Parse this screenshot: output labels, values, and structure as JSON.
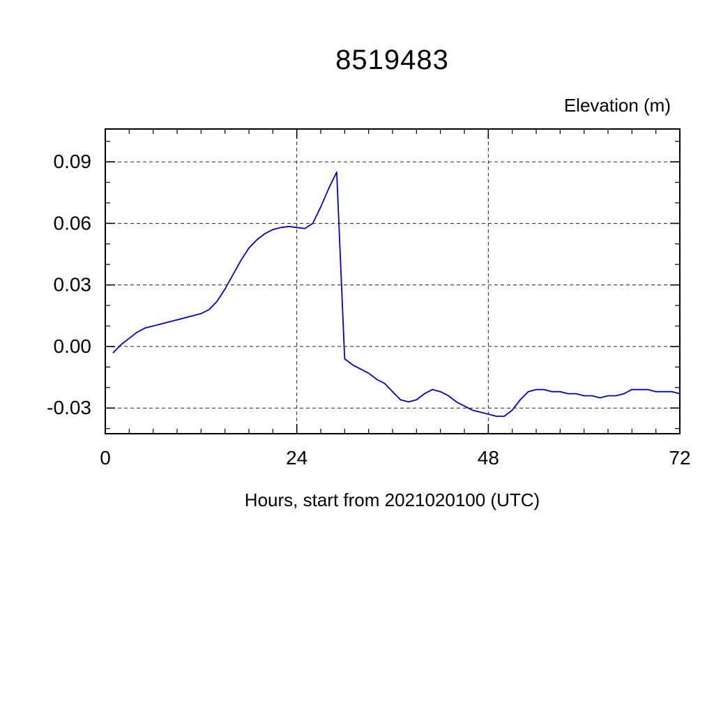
{
  "chart_data": {
    "type": "line",
    "title": "8519483",
    "ylabel": "Elevation (m)",
    "xlabel": "Hours, start from 2021020100 (UTC)",
    "line_color": "#0000cd",
    "grid": true,
    "legend": "none",
    "xlim": [
      0,
      72
    ],
    "ylim": [
      -0.0425,
      0.106
    ],
    "x_minor": 3,
    "y_minor": 0.01,
    "xticks": {
      "values": [
        0,
        24,
        48,
        72
      ],
      "labels": [
        "0",
        "24",
        "48",
        "72"
      ]
    },
    "yticks": {
      "values": [
        0.09,
        0.06,
        0.03,
        0.0,
        -0.03
      ],
      "labels": [
        "0.09",
        "0.06",
        "0.03",
        "0.00",
        "-0.03"
      ]
    },
    "x_grid": [
      24,
      48
    ],
    "y_grid": [
      0.09,
      0.06,
      0.03,
      0.0,
      -0.03
    ],
    "x": [
      1,
      2,
      3,
      4,
      5,
      6,
      7,
      8,
      9,
      10,
      11,
      12,
      13,
      14,
      15,
      16,
      17,
      18,
      19,
      20,
      21,
      22,
      23,
      24,
      25,
      26,
      27,
      28,
      29,
      30,
      31,
      32,
      33,
      34,
      35,
      36,
      37,
      38,
      39,
      40,
      41,
      42,
      43,
      44,
      45,
      46,
      47,
      48,
      49,
      50,
      51,
      52,
      53,
      54,
      55,
      56,
      57,
      58,
      59,
      60,
      61,
      62,
      63,
      64,
      65,
      66,
      67,
      68,
      69,
      70,
      71,
      72
    ],
    "y": [
      -0.003,
      0.001,
      0.004,
      0.007,
      0.009,
      0.01,
      0.011,
      0.012,
      0.013,
      0.014,
      0.015,
      0.016,
      0.018,
      0.022,
      0.028,
      0.035,
      0.042,
      0.048,
      0.052,
      0.055,
      0.057,
      0.058,
      0.0585,
      0.058,
      0.0575,
      0.06,
      0.068,
      0.077,
      0.085,
      -0.006,
      -0.009,
      -0.011,
      -0.013,
      -0.016,
      -0.018,
      -0.022,
      -0.026,
      -0.027,
      -0.026,
      -0.023,
      -0.021,
      -0.022,
      -0.024,
      -0.027,
      -0.029,
      -0.031,
      -0.032,
      -0.033,
      -0.034,
      -0.034,
      -0.031,
      -0.026,
      -0.022,
      -0.021,
      -0.021,
      -0.022,
      -0.022,
      -0.023,
      -0.023,
      -0.024,
      -0.024,
      -0.025,
      -0.024,
      -0.024,
      -0.023,
      -0.021,
      -0.021,
      -0.021,
      -0.022,
      -0.022,
      -0.022,
      -0.023
    ]
  }
}
